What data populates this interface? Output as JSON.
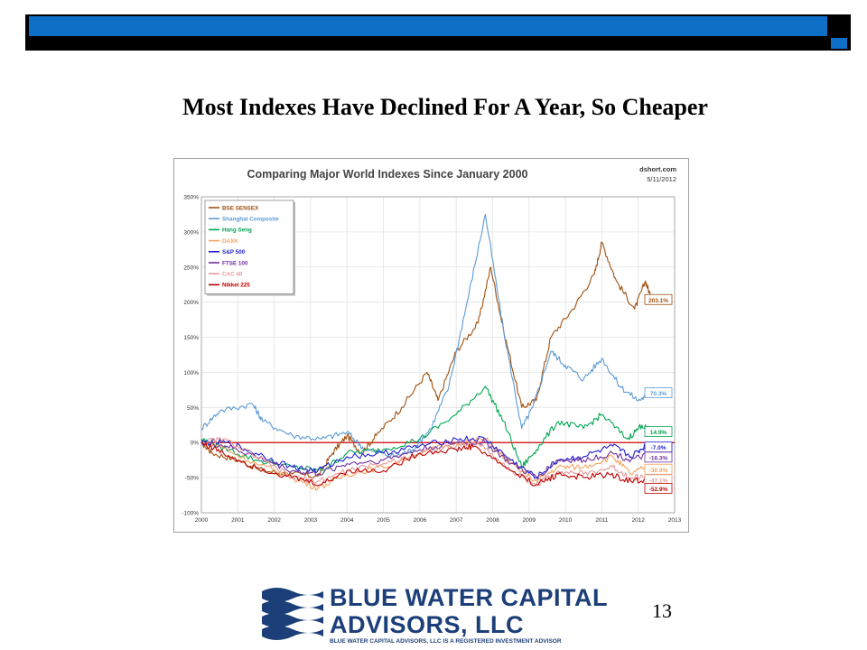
{
  "slide": {
    "title": "Most Indexes Have Declined For  A Year, So Cheaper",
    "page_number": "13"
  },
  "logo": {
    "line1": "BLUE WATER CAPITAL",
    "line2": "ADVISORS, LLC",
    "tagline": "BLUE WATER CAPITAL ADVISORS, LLC IS A REGISTERED INVESTMENT ADVISOR",
    "color": "#1c3f7a"
  },
  "chart_data": {
    "type": "line",
    "title": "Comparing Major World Indexes Since January 2000",
    "source": "dshort.com",
    "date": "5/11/2012",
    "xlim": [
      2000,
      2013
    ],
    "ylim": [
      -100,
      350
    ],
    "x_ticks": [
      "2000",
      "2001",
      "2002",
      "2003",
      "2004",
      "2005",
      "2006",
      "2007",
      "2008",
      "2009",
      "2010",
      "2011",
      "2012",
      "2013"
    ],
    "y_ticks": [
      "350%",
      "300%",
      "250%",
      "200%",
      "150%",
      "100%",
      "50%",
      "0%",
      "-50%",
      "-100%"
    ],
    "y_tick_values": [
      350,
      300,
      250,
      200,
      150,
      100,
      50,
      0,
      -50,
      -100
    ],
    "grid": true,
    "legend_position": "top-left",
    "series": [
      {
        "name": "BSE SENSEX",
        "color": "#a0500f",
        "end_label": "203.1%",
        "points": [
          [
            2000,
            0
          ],
          [
            2000.3,
            -15
          ],
          [
            2001,
            -25
          ],
          [
            2001.7,
            -40
          ],
          [
            2002.5,
            -45
          ],
          [
            2003.2,
            -48
          ],
          [
            2003.6,
            -15
          ],
          [
            2004,
            10
          ],
          [
            2004.4,
            -15
          ],
          [
            2004.8,
            10
          ],
          [
            2005.5,
            50
          ],
          [
            2006.2,
            100
          ],
          [
            2006.5,
            60
          ],
          [
            2007,
            130
          ],
          [
            2007.6,
            170
          ],
          [
            2007.95,
            250
          ],
          [
            2008.3,
            160
          ],
          [
            2008.8,
            50
          ],
          [
            2009.2,
            60
          ],
          [
            2009.6,
            150
          ],
          [
            2010.2,
            190
          ],
          [
            2010.8,
            240
          ],
          [
            2011,
            285
          ],
          [
            2011.4,
            230
          ],
          [
            2011.9,
            190
          ],
          [
            2012.2,
            230
          ],
          [
            2012.37,
            203.1
          ]
        ]
      },
      {
        "name": "Shanghai Composite",
        "color": "#5b9bd5",
        "end_label": "70.3%",
        "points": [
          [
            2000,
            20
          ],
          [
            2000.5,
            45
          ],
          [
            2001.4,
            55
          ],
          [
            2001.7,
            30
          ],
          [
            2002.5,
            10
          ],
          [
            2003.3,
            5
          ],
          [
            2004,
            15
          ],
          [
            2004.5,
            -10
          ],
          [
            2005.3,
            -20
          ],
          [
            2005.8,
            -10
          ],
          [
            2006.3,
            20
          ],
          [
            2006.8,
            80
          ],
          [
            2007.3,
            200
          ],
          [
            2007.8,
            325
          ],
          [
            2008.3,
            160
          ],
          [
            2008.8,
            20
          ],
          [
            2009.1,
            50
          ],
          [
            2009.6,
            130
          ],
          [
            2010,
            110
          ],
          [
            2010.5,
            90
          ],
          [
            2011,
            120
          ],
          [
            2011.5,
            80
          ],
          [
            2012,
            60
          ],
          [
            2012.37,
            70.3
          ]
        ]
      },
      {
        "name": "Hang Seng",
        "color": "#00a651",
        "end_label": "14.9%",
        "points": [
          [
            2000,
            5
          ],
          [
            2000.5,
            -5
          ],
          [
            2001.5,
            -25
          ],
          [
            2002.5,
            -35
          ],
          [
            2003.3,
            -40
          ],
          [
            2004,
            -15
          ],
          [
            2005,
            -10
          ],
          [
            2006,
            5
          ],
          [
            2007,
            40
          ],
          [
            2007.8,
            80
          ],
          [
            2008.3,
            30
          ],
          [
            2008.8,
            -35
          ],
          [
            2009.2,
            -10
          ],
          [
            2009.8,
            30
          ],
          [
            2010.5,
            20
          ],
          [
            2011,
            40
          ],
          [
            2011.7,
            5
          ],
          [
            2012.1,
            25
          ],
          [
            2012.37,
            14.9
          ]
        ]
      },
      {
        "name": "DAXK",
        "color": "#f4a460",
        "end_label": "-30.9%",
        "points": [
          [
            2000,
            0
          ],
          [
            2000.5,
            -5
          ],
          [
            2001.5,
            -30
          ],
          [
            2002.5,
            -50
          ],
          [
            2003.2,
            -65
          ],
          [
            2004,
            -45
          ],
          [
            2005,
            -35
          ],
          [
            2006,
            -15
          ],
          [
            2007,
            0
          ],
          [
            2007.8,
            5
          ],
          [
            2008.5,
            -30
          ],
          [
            2009.2,
            -55
          ],
          [
            2009.8,
            -35
          ],
          [
            2010.5,
            -35
          ],
          [
            2011.3,
            -20
          ],
          [
            2011.8,
            -45
          ],
          [
            2012.37,
            -30.9
          ]
        ]
      },
      {
        "name": "S&P 500",
        "color": "#1f1fd0",
        "end_label": "-7.0%",
        "points": [
          [
            2000,
            0
          ],
          [
            2000.7,
            0
          ],
          [
            2001.5,
            -15
          ],
          [
            2002.5,
            -35
          ],
          [
            2003.2,
            -40
          ],
          [
            2004,
            -20
          ],
          [
            2005,
            -15
          ],
          [
            2006,
            -5
          ],
          [
            2007,
            5
          ],
          [
            2007.8,
            5
          ],
          [
            2008.5,
            -25
          ],
          [
            2009.2,
            -50
          ],
          [
            2009.8,
            -25
          ],
          [
            2010.5,
            -20
          ],
          [
            2011.3,
            -5
          ],
          [
            2011.8,
            -20
          ],
          [
            2012.2,
            -5
          ],
          [
            2012.37,
            -7.0
          ]
        ]
      },
      {
        "name": "FTSE 100",
        "color": "#7030a0",
        "end_label": "-16.3%",
        "points": [
          [
            2000,
            0
          ],
          [
            2000.7,
            -5
          ],
          [
            2001.5,
            -20
          ],
          [
            2002.5,
            -40
          ],
          [
            2003.2,
            -45
          ],
          [
            2004,
            -30
          ],
          [
            2005,
            -25
          ],
          [
            2006,
            -10
          ],
          [
            2007,
            0
          ],
          [
            2007.8,
            0
          ],
          [
            2008.5,
            -30
          ],
          [
            2009.2,
            -50
          ],
          [
            2009.8,
            -25
          ],
          [
            2010.5,
            -25
          ],
          [
            2011.3,
            -15
          ],
          [
            2011.8,
            -25
          ],
          [
            2012.37,
            -16.3
          ]
        ]
      },
      {
        "name": "CAC 40",
        "color": "#e59a9a",
        "end_label": "-47.1%",
        "points": [
          [
            2000,
            0
          ],
          [
            2000.6,
            5
          ],
          [
            2001.5,
            -20
          ],
          [
            2002.5,
            -50
          ],
          [
            2003.2,
            -55
          ],
          [
            2004,
            -40
          ],
          [
            2005,
            -30
          ],
          [
            2006,
            -15
          ],
          [
            2007,
            -5
          ],
          [
            2007.6,
            0
          ],
          [
            2008.5,
            -40
          ],
          [
            2009.2,
            -60
          ],
          [
            2009.8,
            -40
          ],
          [
            2010.5,
            -45
          ],
          [
            2011.3,
            -35
          ],
          [
            2011.8,
            -50
          ],
          [
            2012.37,
            -47.1
          ]
        ]
      },
      {
        "name": "Nikkei 225",
        "color": "#c00000",
        "end_label": "-52.9%",
        "points": [
          [
            2000,
            0
          ],
          [
            2000.6,
            -15
          ],
          [
            2001.5,
            -35
          ],
          [
            2002.5,
            -50
          ],
          [
            2003.3,
            -60
          ],
          [
            2004,
            -40
          ],
          [
            2005,
            -40
          ],
          [
            2006,
            -15
          ],
          [
            2007,
            -10
          ],
          [
            2007.5,
            -5
          ],
          [
            2008.5,
            -40
          ],
          [
            2009.2,
            -60
          ],
          [
            2009.8,
            -45
          ],
          [
            2010.5,
            -50
          ],
          [
            2011.2,
            -45
          ],
          [
            2011.8,
            -55
          ],
          [
            2012.37,
            -52.9
          ]
        ]
      }
    ]
  }
}
